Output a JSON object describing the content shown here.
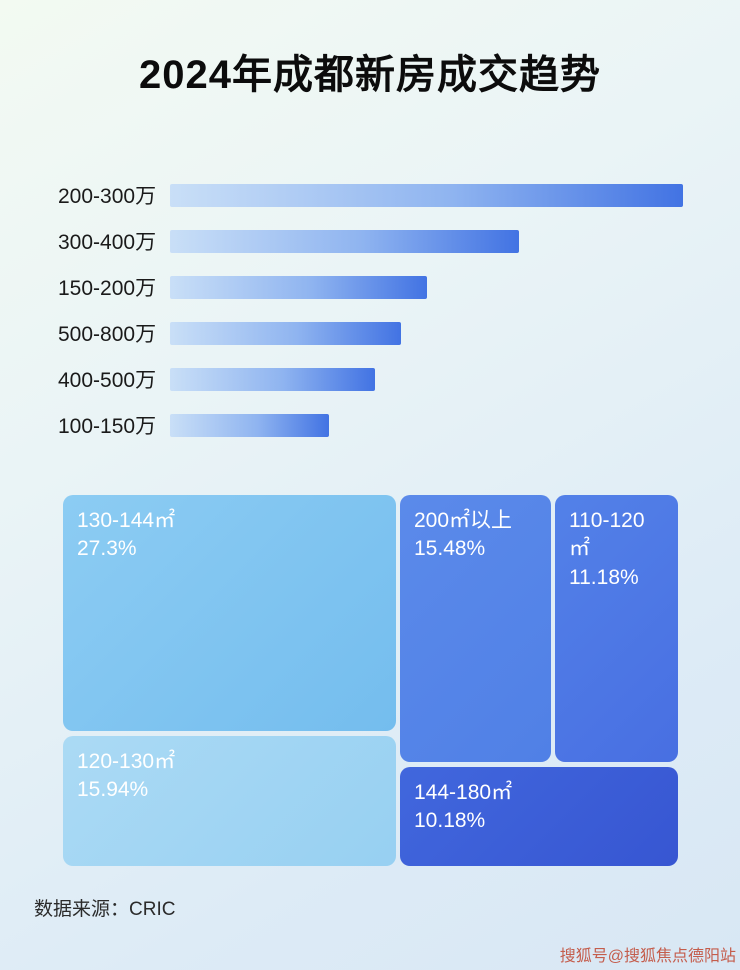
{
  "title": "2024年成都新房成交趋势",
  "source": "数据来源：CRIC",
  "watermark": "搜狐号@搜狐焦点德阳站",
  "colors": {
    "bar_gradient_start": "#c9dff7",
    "bar_gradient_end": "#4273e3",
    "block_130_144": "#7ec6f0",
    "block_200_plus": "#5585e8",
    "block_110_120": "#4d78e5",
    "block_120_130": "#a3d6f3",
    "block_144_180": "#3c5fd8",
    "watermark_color": "#c1452f"
  },
  "chart_data": [
    {
      "type": "bar",
      "orientation": "horizontal",
      "title": "2024年成都新房成交趋势",
      "categories": [
        "200-300万",
        "300-400万",
        "150-200万",
        "500-800万",
        "400-500万",
        "100-150万"
      ],
      "values": [
        100,
        68,
        50,
        45,
        40,
        31
      ],
      "xlabel": "",
      "ylabel": "",
      "grid": false,
      "legend": false
    },
    {
      "type": "treemap",
      "title": "",
      "blocks": [
        {
          "label": "130-144㎡",
          "percent": "27.3%",
          "value": 27.3
        },
        {
          "label": "200㎡以上",
          "percent": "15.48%",
          "value": 15.48
        },
        {
          "label": "110-120㎡",
          "percent": "11.18%",
          "value": 11.18
        },
        {
          "label": "120-130㎡",
          "percent": "15.94%",
          "value": 15.94
        },
        {
          "label": "144-180㎡",
          "percent": "10.18%",
          "value": 10.18
        }
      ]
    }
  ]
}
